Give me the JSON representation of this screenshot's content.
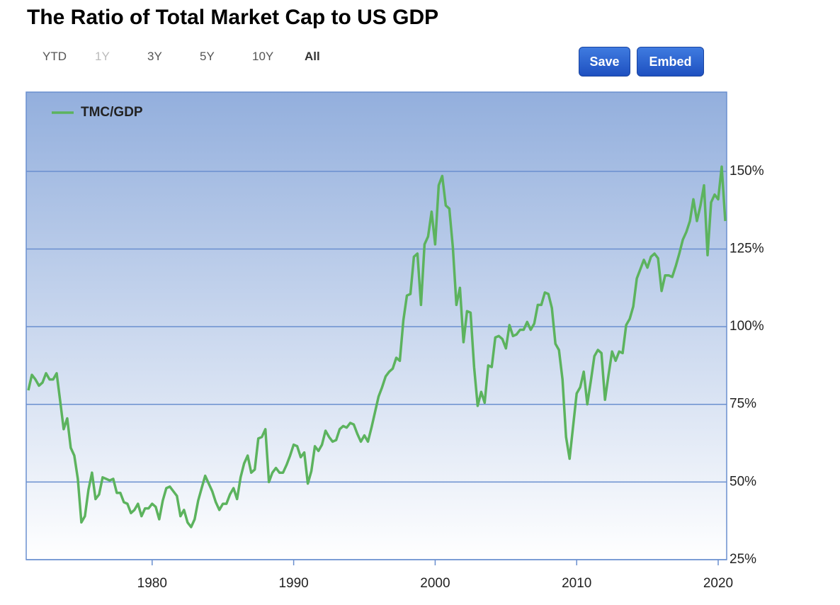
{
  "title": "The Ratio of Total Market Cap to US GDP",
  "range_buttons": [
    "YTD",
    "1Y",
    "3Y",
    "5Y",
    "10Y",
    "All"
  ],
  "actions": [
    "Save",
    "Embed"
  ],
  "chart_data": {
    "type": "line",
    "legend": "top-left",
    "grid": true,
    "xlim": [
      1971.1,
      2020.6
    ],
    "xticks": [
      1980,
      1990,
      2000,
      2010,
      2020
    ],
    "ylim": [
      25,
      175.5
    ],
    "yticks": [
      {
        "value": 25,
        "label": "25%"
      },
      {
        "value": 50,
        "label": "50%"
      },
      {
        "value": 75,
        "label": "75%"
      },
      {
        "value": 100,
        "label": "100%"
      },
      {
        "value": 125,
        "label": "125%"
      },
      {
        "value": 150,
        "label": "150%"
      }
    ],
    "x": [
      1971.25,
      1971.5,
      1971.75,
      1972,
      1972.25,
      1972.5,
      1972.75,
      1973,
      1973.25,
      1973.5,
      1973.75,
      1974,
      1974.25,
      1974.5,
      1974.75,
      1975,
      1975.25,
      1975.5,
      1975.75,
      1976,
      1976.25,
      1976.5,
      1976.75,
      1977,
      1977.25,
      1977.5,
      1977.75,
      1978,
      1978.25,
      1978.5,
      1978.75,
      1979,
      1979.25,
      1979.5,
      1979.75,
      1980,
      1980.25,
      1980.5,
      1980.75,
      1981,
      1981.25,
      1981.5,
      1981.75,
      1982,
      1982.25,
      1982.5,
      1982.75,
      1983,
      1983.25,
      1983.5,
      1983.75,
      1984,
      1984.25,
      1984.5,
      1984.75,
      1985,
      1985.25,
      1985.5,
      1985.75,
      1986,
      1986.25,
      1986.5,
      1986.75,
      1987,
      1987.25,
      1987.5,
      1987.75,
      1988,
      1988.25,
      1988.5,
      1988.75,
      1989,
      1989.25,
      1989.5,
      1989.75,
      1990,
      1990.25,
      1990.5,
      1990.75,
      1991,
      1991.25,
      1991.5,
      1991.75,
      1992,
      1992.25,
      1992.5,
      1992.75,
      1993,
      1993.25,
      1993.5,
      1993.75,
      1994,
      1994.25,
      1994.5,
      1994.75,
      1995,
      1995.25,
      1995.5,
      1995.75,
      1996,
      1996.25,
      1996.5,
      1996.75,
      1997,
      1997.25,
      1997.5,
      1997.75,
      1998,
      1998.25,
      1998.5,
      1998.75,
      1999,
      1999.25,
      1999.5,
      1999.75,
      2000,
      2000.25,
      2000.5,
      2000.75,
      2001,
      2001.25,
      2001.5,
      2001.75,
      2002,
      2002.25,
      2002.5,
      2002.75,
      2003,
      2003.25,
      2003.5,
      2003.75,
      2004,
      2004.25,
      2004.5,
      2004.75,
      2005,
      2005.25,
      2005.5,
      2005.75,
      2006,
      2006.25,
      2006.5,
      2006.75,
      2007,
      2007.25,
      2007.5,
      2007.75,
      2008,
      2008.25,
      2008.5,
      2008.75,
      2009,
      2009.25,
      2009.5,
      2009.75,
      2010,
      2010.25,
      2010.5,
      2010.75,
      2011,
      2011.25,
      2011.5,
      2011.75,
      2012,
      2012.25,
      2012.5,
      2012.75,
      2013,
      2013.25,
      2013.5,
      2013.75,
      2014,
      2014.25,
      2014.5,
      2014.75,
      2015,
      2015.25,
      2015.5,
      2015.75,
      2016,
      2016.25,
      2016.5,
      2016.75,
      2017,
      2017.25,
      2017.5,
      2017.75,
      2018,
      2018.25,
      2018.5,
      2018.75,
      2019,
      2019.25,
      2019.5,
      2019.75,
      2020,
      2020.25,
      2020.5
    ],
    "series": [
      {
        "name": "TMC/GDP",
        "color": "#5cb35e",
        "values": [
          79.5,
          84.5,
          83,
          81,
          82,
          85,
          83,
          83,
          85,
          76,
          67,
          70.5,
          61,
          58.5,
          51,
          37,
          39,
          47.5,
          53,
          44.5,
          46,
          51.5,
          51,
          50.5,
          51,
          46.5,
          46.5,
          43.5,
          43,
          40,
          41,
          43,
          39,
          41.5,
          41.5,
          43,
          42,
          38,
          44,
          48,
          48.5,
          47,
          45.5,
          39,
          41,
          37,
          35.5,
          38,
          44,
          48,
          52,
          49.5,
          47,
          43.5,
          41,
          43,
          43,
          46,
          48,
          44.5,
          51.5,
          56,
          58.5,
          53,
          54,
          64,
          64.5,
          67,
          50,
          53,
          54.5,
          53,
          53,
          55.5,
          58.5,
          62,
          61.5,
          58,
          59.5,
          49.5,
          53.5,
          61.5,
          60,
          62,
          66.5,
          64.5,
          63,
          63.5,
          67,
          68,
          67.5,
          69,
          68.5,
          65.5,
          63,
          65,
          63,
          67.5,
          72.5,
          77.5,
          80.5,
          84,
          85.5,
          86.5,
          90,
          89,
          102,
          110,
          110.5,
          122.5,
          123.5,
          107,
          126.5,
          129,
          137,
          126.5,
          145.5,
          148.5,
          139,
          138,
          125.5,
          107,
          112.5,
          95,
          105,
          104.5,
          87,
          74.5,
          79,
          75.5,
          87.5,
          87,
          96.5,
          97,
          96,
          93,
          100.5,
          97,
          97.5,
          99,
          99,
          101.5,
          99,
          101,
          107,
          107,
          111,
          110.5,
          106,
          94.5,
          92.5,
          83,
          64.5,
          57.5,
          68,
          78.5,
          80.5,
          85.5,
          75,
          82.5,
          90.5,
          92.5,
          91.5,
          76.5,
          84.5,
          92,
          89,
          92,
          91.5,
          100.5,
          102.5,
          106.5,
          115.5,
          118.5,
          121.5,
          119,
          122.5,
          123.5,
          122,
          111.5,
          116.5,
          116.5,
          116,
          119.5,
          123.5,
          128,
          130.5,
          134,
          141,
          134,
          139,
          145.5,
          123,
          140,
          142.5,
          141,
          151.5,
          134
        ]
      }
    ]
  }
}
